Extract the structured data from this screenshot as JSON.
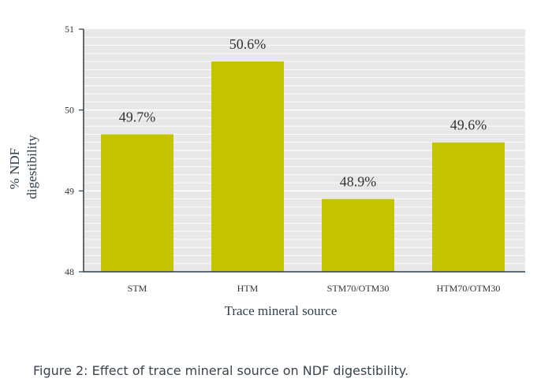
{
  "chart_data": {
    "type": "bar",
    "categories": [
      "STM",
      "HTM",
      "STM70/OTM30",
      "HTM70/OTM30"
    ],
    "values": [
      49.7,
      50.6,
      48.9,
      49.6
    ],
    "data_labels": [
      "49.7%",
      "50.6%",
      "48.9%",
      "49.6%"
    ],
    "title": "",
    "xlabel": "Trace mineral source",
    "ylabel_lines": [
      "% NDF",
      "digestibility"
    ],
    "ylim": [
      48,
      51
    ],
    "yticks": [
      48,
      49,
      50,
      51
    ],
    "grid": true,
    "bar_color": "#c3c300",
    "plot_background": "#e8e8e8",
    "grid_color": "#ffffff",
    "axis_color": "#2f3f4f"
  },
  "caption": "Figure 2: Effect of trace mineral source on NDF digestibility."
}
